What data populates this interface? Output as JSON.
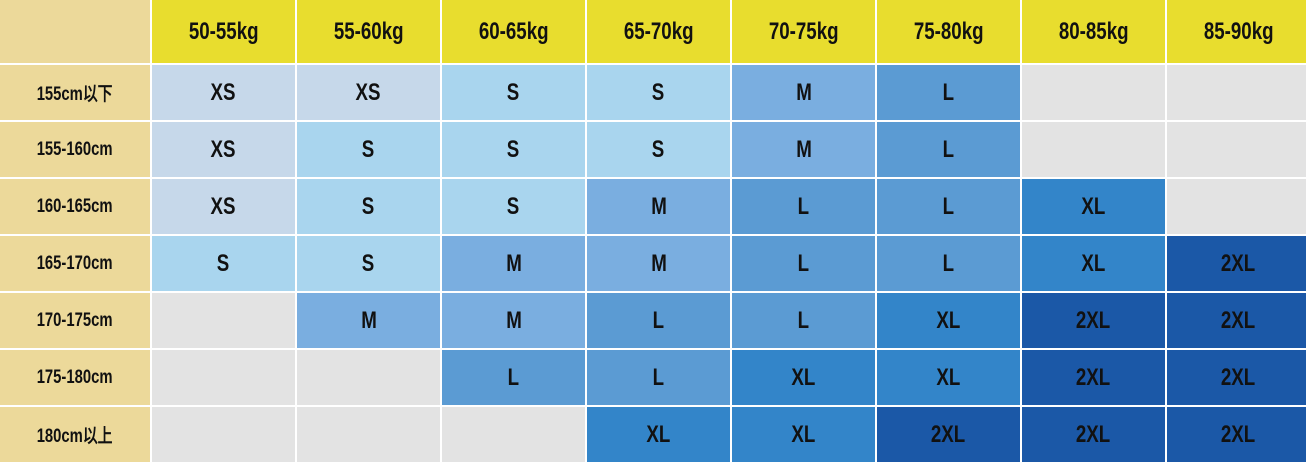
{
  "table": {
    "corner": "",
    "columns": [
      "50-55kg",
      "55-60kg",
      "60-65kg",
      "65-70kg",
      "70-75kg",
      "75-80kg",
      "80-85kg",
      "85-90kg"
    ],
    "rows": [
      {
        "label": "155cm以下",
        "sizes": [
          "XS",
          "XS",
          "S",
          "S",
          "M",
          "L",
          "",
          ""
        ]
      },
      {
        "label": "155-160cm",
        "sizes": [
          "XS",
          "S",
          "S",
          "S",
          "M",
          "L",
          "",
          ""
        ]
      },
      {
        "label": "160-165cm",
        "sizes": [
          "XS",
          "S",
          "S",
          "M",
          "L",
          "L",
          "XL",
          ""
        ]
      },
      {
        "label": "165-170cm",
        "sizes": [
          "S",
          "S",
          "M",
          "M",
          "L",
          "L",
          "XL",
          "2XL"
        ]
      },
      {
        "label": "170-175cm",
        "sizes": [
          "",
          "M",
          "M",
          "L",
          "L",
          "XL",
          "2XL",
          "2XL"
        ]
      },
      {
        "label": "175-180cm",
        "sizes": [
          "",
          "",
          "L",
          "L",
          "XL",
          "XL",
          "2XL",
          "2XL"
        ]
      },
      {
        "label": "180cm以上",
        "sizes": [
          "",
          "",
          "",
          "XL",
          "XL",
          "2XL",
          "2XL",
          "2XL"
        ]
      }
    ]
  },
  "colors": {
    "header_bg": "#e8dd2e",
    "row_header_bg": "#ecd99a",
    "XS": "#c6d8ea",
    "S": "#a9d5ee",
    "M": "#7aaee0",
    "L": "#5b9bd3",
    "XL": "#3385c9",
    "2XL": "#1b58a7",
    "empty": "#e3e3e3"
  }
}
